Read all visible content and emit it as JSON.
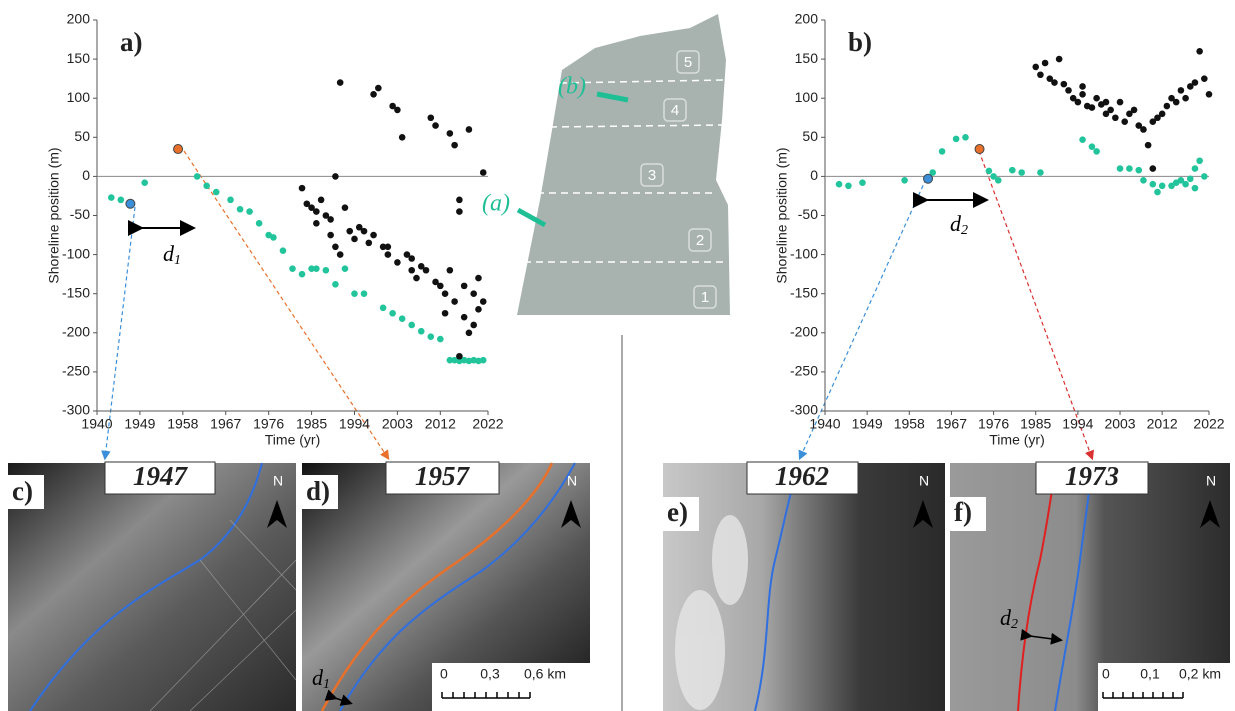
{
  "chart_data": [
    {
      "type": "scatter",
      "panel": "a)",
      "xlabel": "Time (yr)",
      "ylabel": "Shoreline position (m)",
      "xlim": [
        1940,
        2022
      ],
      "xticks": [
        1940,
        1949,
        1958,
        1967,
        1976,
        1985,
        1994,
        2003,
        2012,
        2022
      ],
      "ylim": [
        -300,
        200
      ],
      "yticks": [
        -300,
        -250,
        -200,
        -150,
        -100,
        -50,
        0,
        50,
        100,
        150,
        200
      ],
      "annotation": {
        "text": "d",
        "subscript": "1"
      },
      "series": [
        {
          "color": "#22c49b",
          "x": [
            1943,
            1945,
            1950,
            1961,
            1963,
            1965,
            1968,
            1970,
            1972,
            1974,
            1976,
            1977,
            1979,
            1981,
            1983,
            1985,
            1986,
            1988,
            1990,
            1992,
            1994,
            1996,
            2000,
            2002,
            2004,
            2006,
            2008,
            2010,
            2012,
            2014,
            2015,
            2016,
            2017,
            2018,
            2019,
            2020,
            2021
          ],
          "values": [
            -27,
            -30,
            -8,
            0,
            -12,
            -20,
            -30,
            -42,
            -45,
            -60,
            -75,
            -78,
            -95,
            -118,
            -125,
            -118,
            -118,
            -120,
            -138,
            -118,
            -150,
            -150,
            -168,
            -175,
            -182,
            -190,
            -198,
            -205,
            -208,
            -235,
            -235,
            -236,
            -235,
            -236,
            -235,
            -236,
            -235
          ]
        },
        {
          "color": "#111111",
          "x": [
            1983,
            1984,
            1985,
            1986,
            1986,
            1987,
            1988,
            1989,
            1989,
            1990,
            1991,
            1990,
            1991,
            1992,
            1993,
            1995,
            1996,
            1997,
            1998,
            1999,
            1998,
            2000,
            2001,
            2002,
            2003,
            2004,
            2003,
            2005,
            2006,
            2007,
            2008,
            2010,
            2011,
            2012,
            2013,
            2013,
            2014,
            2015,
            2015,
            2016,
            2016,
            2017,
            2017,
            2018,
            2018,
            2019,
            2019,
            2020,
            2020,
            2021,
            2021,
            2016,
            2014,
            2011,
            2009,
            1994,
            2001,
            2006
          ],
          "values": [
            -15,
            -35,
            -40,
            -45,
            -60,
            -30,
            -50,
            -55,
            -75,
            0,
            120,
            -90,
            -100,
            -40,
            -70,
            -65,
            -70,
            -85,
            105,
            113,
            -75,
            -90,
            -100,
            90,
            85,
            50,
            -110,
            -100,
            -120,
            -130,
            -115,
            75,
            65,
            -140,
            -150,
            -175,
            55,
            40,
            -160,
            -30,
            -45,
            -140,
            -180,
            60,
            -200,
            -150,
            -190,
            -130,
            -170,
            5,
            -160,
            -230,
            -120,
            -135,
            -120,
            -80,
            -90,
            -105
          ]
        },
        {
          "color": "#3a8fd8",
          "x": [
            1947
          ],
          "values": [
            -35
          ]
        },
        {
          "color": "#e8702a",
          "x": [
            1957
          ],
          "values": [
            35
          ]
        }
      ]
    },
    {
      "type": "scatter",
      "panel": "b)",
      "xlabel": "Time (yr)",
      "ylabel": "Shoreline position (m)",
      "xlim": [
        1940,
        2022
      ],
      "xticks": [
        1940,
        1949,
        1958,
        1967,
        1976,
        1985,
        1994,
        2003,
        2012,
        2022
      ],
      "ylim": [
        -300,
        200
      ],
      "yticks": [
        -300,
        -250,
        -200,
        -150,
        -100,
        -50,
        0,
        50,
        100,
        150,
        200
      ],
      "annotation": {
        "text": "d",
        "subscript": "2"
      },
      "series": [
        {
          "color": "#22c49b",
          "x": [
            1943,
            1945,
            1948,
            1957,
            1963,
            1965,
            1968,
            1970,
            1975,
            1976,
            1977,
            1980,
            1982,
            1986,
            1995,
            1997,
            1998,
            2003,
            2005,
            2007,
            2008,
            2010,
            2011,
            2012,
            2014,
            2015,
            2016,
            2017,
            2018,
            2019,
            2020,
            2021,
            2019
          ],
          "values": [
            -10,
            -12,
            -8,
            -5,
            5,
            32,
            48,
            50,
            7,
            0,
            -5,
            8,
            5,
            5,
            47,
            38,
            32,
            10,
            10,
            8,
            -5,
            -10,
            -20,
            -12,
            -12,
            -8,
            -5,
            -10,
            -3,
            10,
            20,
            0,
            -15
          ]
        },
        {
          "color": "#111111",
          "x": [
            1985,
            1986,
            1987,
            1988,
            1989,
            1990,
            1991,
            1992,
            1993,
            1994,
            1995,
            1996,
            1997,
            1998,
            1999,
            2000,
            2001,
            2002,
            2003,
            2004,
            2005,
            2006,
            2007,
            2008,
            2009,
            2010,
            2011,
            2012,
            2013,
            2014,
            2015,
            2016,
            2017,
            2018,
            2019,
            2020,
            2021,
            2022,
            1995,
            2000,
            2010
          ],
          "values": [
            140,
            130,
            145,
            125,
            120,
            150,
            118,
            110,
            100,
            95,
            105,
            90,
            88,
            100,
            92,
            80,
            85,
            75,
            95,
            70,
            80,
            85,
            65,
            60,
            40,
            70,
            75,
            80,
            90,
            100,
            95,
            110,
            100,
            115,
            120,
            160,
            125,
            105,
            115,
            95,
            10
          ]
        },
        {
          "color": "#3a8fd8",
          "x": [
            1962
          ],
          "values": [
            -3
          ]
        },
        {
          "color": "#e8702a",
          "x": [
            1973
          ],
          "values": [
            35
          ]
        }
      ]
    }
  ],
  "map": {
    "zones": [
      "1",
      "2",
      "3",
      "4",
      "5"
    ],
    "sites": [
      "(a)",
      "(b)"
    ]
  },
  "panels": [
    {
      "label": "c)",
      "year": "1947",
      "north": "N"
    },
    {
      "label": "d)",
      "year": "1957",
      "north": "N",
      "distance": {
        "text": "d",
        "subscript": "1"
      },
      "scale": [
        "0",
        "0,3",
        "0,6 km"
      ]
    },
    {
      "label": "e)",
      "year": "1962",
      "north": "N"
    },
    {
      "label": "f)",
      "year": "1973",
      "north": "N",
      "distance": {
        "text": "d",
        "subscript": "2"
      },
      "scale": [
        "0",
        "0,1",
        "0,2 km"
      ]
    }
  ]
}
